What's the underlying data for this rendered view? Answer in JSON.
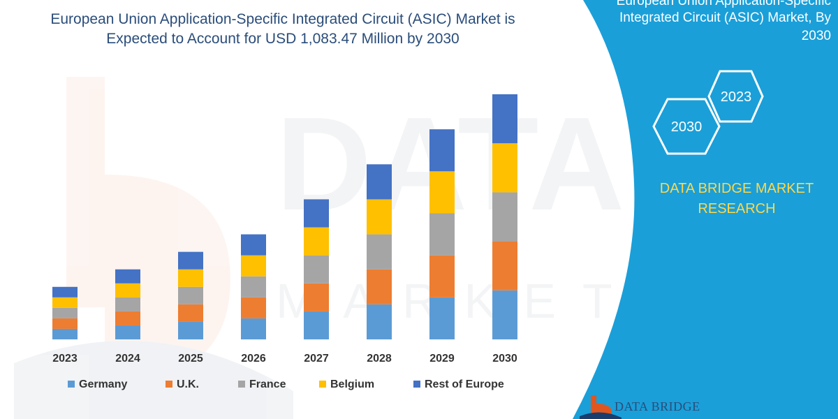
{
  "header": {
    "title_line1": "European Union Application-Specific Integrated Circuit (ASIC) Market is",
    "title_line2": "Expected to Account for USD 1,083.47 Million by 2030"
  },
  "side_panel": {
    "heading_line1": "European Union Application-Specific",
    "heading_line2": "Integrated Circuit (ASIC) Market, By",
    "heading_line3": "2030",
    "hex_labels": [
      "2023",
      "2030"
    ],
    "brand_line1": "DATA BRIDGE MARKET",
    "brand_line2": "RESEARCH",
    "footer_logo_text": "DATA BRIDGE",
    "panel_color": "#1a9fd9",
    "brand_color": "#ffd84a"
  },
  "watermark": {
    "text": "DATABRIDGE",
    "subtext": "MARKET RESEARCH"
  },
  "chart_data": {
    "type": "bar",
    "stacked": true,
    "categories": [
      "2023",
      "2024",
      "2025",
      "2026",
      "2027",
      "2028",
      "2029",
      "2030"
    ],
    "series": [
      {
        "name": "Germany",
        "color": "#5b9bd5",
        "values": [
          3,
          4,
          5,
          6,
          8,
          10,
          12,
          14
        ]
      },
      {
        "name": "U.K.",
        "color": "#ed7d31",
        "values": [
          3,
          4,
          5,
          6,
          8,
          10,
          12,
          14
        ]
      },
      {
        "name": "France",
        "color": "#a5a5a5",
        "values": [
          3,
          4,
          5,
          6,
          8,
          10,
          12,
          14
        ]
      },
      {
        "name": "Belgium",
        "color": "#ffc000",
        "values": [
          3,
          4,
          5,
          6,
          8,
          10,
          12,
          14
        ]
      },
      {
        "name": "Rest of Europe",
        "color": "#4472c4",
        "values": [
          3,
          4,
          5,
          6,
          8,
          10,
          12,
          14
        ]
      }
    ],
    "ylim": [
      0,
      70
    ],
    "xlabel": "",
    "ylabel": "",
    "grid": false,
    "legend": "bottom"
  }
}
